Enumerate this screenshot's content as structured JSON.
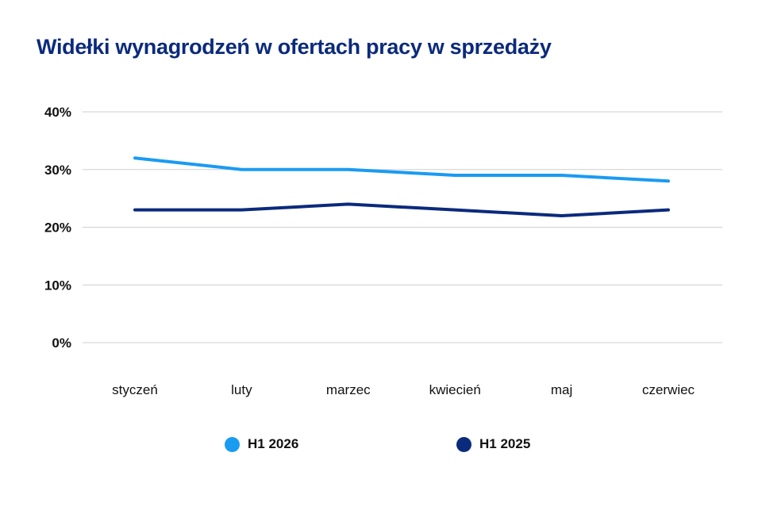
{
  "chart_data": {
    "type": "line",
    "title": "Widełki wynagrodzeń w ofertach pracy w sprzedaży",
    "categories": [
      "styczeń",
      "luty",
      "marzec",
      "kwiecień",
      "maj",
      "czerwiec"
    ],
    "series": [
      {
        "name": "H1 2026",
        "color": "#1a9bf2",
        "values": [
          32,
          30,
          30,
          29,
          29,
          28
        ]
      },
      {
        "name": "H1 2025",
        "color": "#0b2a7c",
        "values": [
          23,
          23,
          24,
          23,
          22,
          23
        ]
      }
    ],
    "ylim": [
      0,
      40
    ],
    "yticks": [
      0,
      10,
      20,
      30,
      40
    ],
    "ytick_labels": [
      "0%",
      "10%",
      "20%",
      "30%",
      "40%"
    ],
    "xlabel": "",
    "ylabel": "",
    "grid": true,
    "legend_position": "bottom",
    "colors": {
      "title": "#0b2a7c",
      "grid": "#cfcfcf",
      "text": "#111111"
    }
  }
}
